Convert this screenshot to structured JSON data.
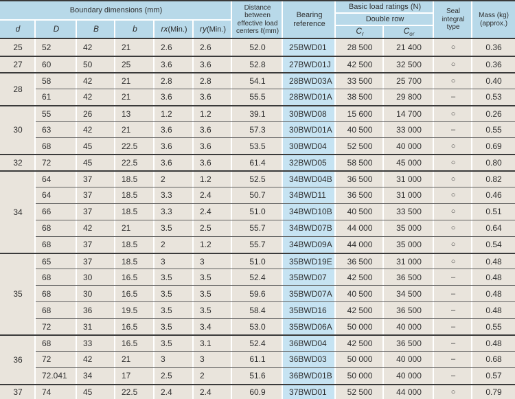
{
  "colors": {
    "header_blue": "#b8d9e9",
    "bearing_ref_blue": "#c6e3f2",
    "cell_beige": "#e9e4dc",
    "rule_dark": "#3a3a3a"
  },
  "header": {
    "boundary_dims": "Boundary dimensions (mm)",
    "col_d": "d",
    "col_D": "D",
    "col_B": "B",
    "col_b": "b",
    "col_rx": "rx",
    "col_ry": "ry",
    "min_label": "(Min.)",
    "distance": "Distance between effective load centers ℓ(mm)",
    "bearing_reference": "Bearing reference",
    "basic_load_ratings": "Basic load ratings (N)",
    "double_row": "Double row",
    "cr_base": "C",
    "cr_sub": "r",
    "cor_base": "C",
    "cor_sub": "or",
    "seal_integral": "Seal integral type",
    "mass": "Mass (kg) (approx.)"
  },
  "table": {
    "groups": [
      {
        "d": "25",
        "rows": [
          {
            "D": "52",
            "B": "42",
            "b": "21",
            "rx": "2.6",
            "ry": "2.6",
            "dist": "52.0",
            "ref": "25BWD01",
            "cr": "28 500",
            "cor": "21 400",
            "seal": "○",
            "mass": "0.36"
          }
        ]
      },
      {
        "d": "27",
        "rows": [
          {
            "D": "60",
            "B": "50",
            "b": "25",
            "rx": "3.6",
            "ry": "3.6",
            "dist": "52.8",
            "ref": "27BWD01J",
            "cr": "42 500",
            "cor": "32 500",
            "seal": "○",
            "mass": "0.36"
          }
        ]
      },
      {
        "d": "28",
        "rows": [
          {
            "D": "58",
            "B": "42",
            "b": "21",
            "rx": "2.8",
            "ry": "2.8",
            "dist": "54.1",
            "ref": "28BWD03A",
            "cr": "33 500",
            "cor": "25 700",
            "seal": "○",
            "mass": "0.40"
          },
          {
            "D": "61",
            "B": "42",
            "b": "21",
            "rx": "3.6",
            "ry": "3.6",
            "dist": "55.5",
            "ref": "28BWD01A",
            "cr": "38 500",
            "cor": "29 800",
            "seal": "–",
            "mass": "0.53"
          }
        ]
      },
      {
        "d": "30",
        "rows": [
          {
            "D": "55",
            "B": "26",
            "b": "13",
            "rx": "1.2",
            "ry": "1.2",
            "dist": "39.1",
            "ref": "30BWD08",
            "cr": "15 600",
            "cor": "14 700",
            "seal": "○",
            "mass": "0.26"
          },
          {
            "D": "63",
            "B": "42",
            "b": "21",
            "rx": "3.6",
            "ry": "3.6",
            "dist": "57.3",
            "ref": "30BWD01A",
            "cr": "40 500",
            "cor": "33 000",
            "seal": "–",
            "mass": "0.55"
          },
          {
            "D": "68",
            "B": "45",
            "b": "22.5",
            "rx": "3.6",
            "ry": "3.6",
            "dist": "53.5",
            "ref": "30BWD04",
            "cr": "52 500",
            "cor": "40 000",
            "seal": "○",
            "mass": "0.69"
          }
        ]
      },
      {
        "d": "32",
        "rows": [
          {
            "D": "72",
            "B": "45",
            "b": "22.5",
            "rx": "3.6",
            "ry": "3.6",
            "dist": "61.4",
            "ref": "32BWD05",
            "cr": "58 500",
            "cor": "45 000",
            "seal": "○",
            "mass": "0.80"
          }
        ]
      },
      {
        "d": "34",
        "rows": [
          {
            "D": "64",
            "B": "37",
            "b": "18.5",
            "rx": "2",
            "ry": "1.2",
            "dist": "52.5",
            "ref": "34BWD04B",
            "cr": "36 500",
            "cor": "31 000",
            "seal": "○",
            "mass": "0.82"
          },
          {
            "D": "64",
            "B": "37",
            "b": "18.5",
            "rx": "3.3",
            "ry": "2.4",
            "dist": "50.7",
            "ref": "34BWD11",
            "cr": "36 500",
            "cor": "31 000",
            "seal": "○",
            "mass": "0.46"
          },
          {
            "D": "66",
            "B": "37",
            "b": "18.5",
            "rx": "3.3",
            "ry": "2.4",
            "dist": "51.0",
            "ref": "34BWD10B",
            "cr": "40 500",
            "cor": "33 500",
            "seal": "○",
            "mass": "0.51"
          },
          {
            "D": "68",
            "B": "42",
            "b": "21",
            "rx": "3.5",
            "ry": "2.5",
            "dist": "55.7",
            "ref": "34BWD07B",
            "cr": "44 000",
            "cor": "35 000",
            "seal": "○",
            "mass": "0.64"
          },
          {
            "D": "68",
            "B": "37",
            "b": "18.5",
            "rx": "2",
            "ry": "1.2",
            "dist": "55.7",
            "ref": "34BWD09A",
            "cr": "44 000",
            "cor": "35 000",
            "seal": "○",
            "mass": "0.54"
          }
        ]
      },
      {
        "d": "35",
        "rows": [
          {
            "D": "65",
            "B": "37",
            "b": "18.5",
            "rx": "3",
            "ry": "3",
            "dist": "51.0",
            "ref": "35BWD19E",
            "cr": "36 500",
            "cor": "31 000",
            "seal": "○",
            "mass": "0.48"
          },
          {
            "D": "68",
            "B": "30",
            "b": "16.5",
            "rx": "3.5",
            "ry": "3.5",
            "dist": "52.4",
            "ref": "35BWD07",
            "cr": "42 500",
            "cor": "36 500",
            "seal": "–",
            "mass": "0.48"
          },
          {
            "D": "68",
            "B": "30",
            "b": "16.5",
            "rx": "3.5",
            "ry": "3.5",
            "dist": "59.6",
            "ref": "35BWD07A",
            "cr": "40 500",
            "cor": "34 500",
            "seal": "–",
            "mass": "0.48"
          },
          {
            "D": "68",
            "B": "36",
            "b": "19.5",
            "rx": "3.5",
            "ry": "3.5",
            "dist": "58.4",
            "ref": "35BWD16",
            "cr": "42 500",
            "cor": "36 500",
            "seal": "–",
            "mass": "0.48"
          },
          {
            "D": "72",
            "B": "31",
            "b": "16.5",
            "rx": "3.5",
            "ry": "3.4",
            "dist": "53.0",
            "ref": "35BWD06A",
            "cr": "50 000",
            "cor": "40 000",
            "seal": "–",
            "mass": "0.55"
          }
        ]
      },
      {
        "d": "36",
        "rows": [
          {
            "D": "68",
            "B": "33",
            "b": "16.5",
            "rx": "3.5",
            "ry": "3.1",
            "dist": "52.4",
            "ref": "36BWD04",
            "cr": "42 500",
            "cor": "36 500",
            "seal": "–",
            "mass": "0.48"
          },
          {
            "D": "72",
            "B": "42",
            "b": "21",
            "rx": "3",
            "ry": "3",
            "dist": "61.1",
            "ref": "36BWD03",
            "cr": "50 000",
            "cor": "40 000",
            "seal": "–",
            "mass": "0.68"
          },
          {
            "D": "72.041",
            "B": "34",
            "b": "17",
            "rx": "2.5",
            "ry": "2",
            "dist": "51.6",
            "ref": "36BWD01B",
            "cr": "50 000",
            "cor": "40 000",
            "seal": "–",
            "mass": "0.57"
          }
        ]
      },
      {
        "d": "37",
        "rows": [
          {
            "D": "74",
            "B": "45",
            "b": "22.5",
            "rx": "2.4",
            "ry": "2.4",
            "dist": "60.9",
            "ref": "37BWD01",
            "cr": "52 500",
            "cor": "44 000",
            "seal": "○",
            "mass": "0.79"
          }
        ]
      }
    ]
  }
}
